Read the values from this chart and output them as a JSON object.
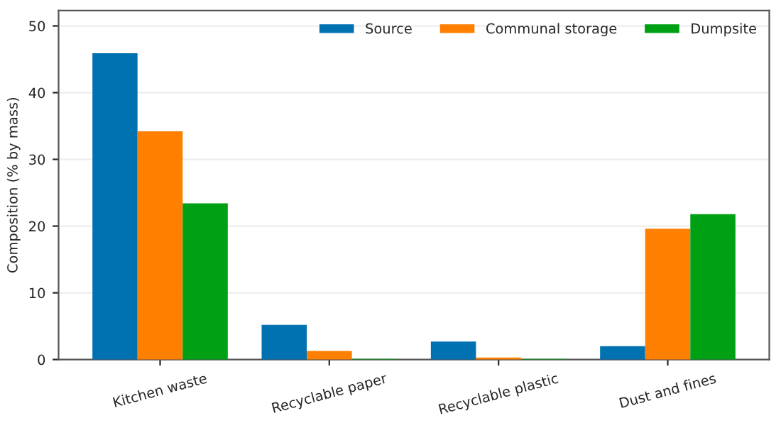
{
  "chart_data": {
    "type": "bar",
    "ylabel": "Composition (% by mass)",
    "categories": [
      "Kitchen waste",
      "Recyclable paper",
      "Recyclable plastic",
      "Dust and fines"
    ],
    "series": [
      {
        "name": "Source",
        "color": "#0072b2",
        "values": [
          45.9,
          5.2,
          2.7,
          2.0
        ]
      },
      {
        "name": "Communal storage",
        "color": "#ff7f00",
        "values": [
          34.2,
          1.3,
          0.3,
          19.6
        ]
      },
      {
        "name": "Dumpsite",
        "color": "#00a014",
        "values": [
          23.4,
          0.1,
          0.1,
          21.8
        ]
      }
    ],
    "ylim": [
      0,
      52.3
    ],
    "yticks": [
      0,
      10,
      20,
      30,
      40,
      50
    ],
    "grid": "y",
    "legend": "top right"
  }
}
